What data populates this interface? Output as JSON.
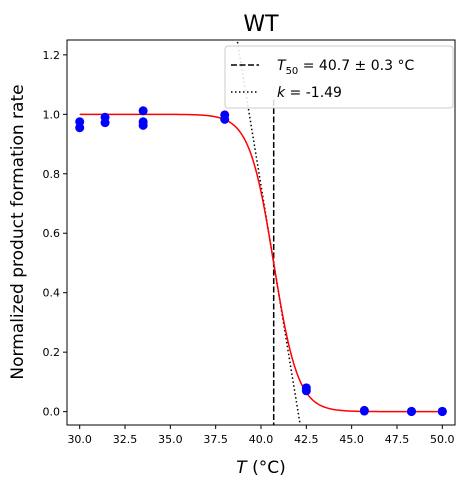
{
  "chart_data": {
    "type": "scatter",
    "title": "WT",
    "xlabel_var": "T",
    "xlabel_unit": " (°C)",
    "ylabel": "Normalized product formation rate",
    "xlim": [
      29.3,
      50.7
    ],
    "ylim": [
      -0.045,
      1.25
    ],
    "xticks": [
      30.0,
      32.5,
      35.0,
      37.5,
      40.0,
      42.5,
      45.0,
      47.5,
      50.0
    ],
    "xtick_labels": [
      "30.0",
      "32.5",
      "35.0",
      "37.5",
      "40.0",
      "42.5",
      "45.0",
      "47.5",
      "50.0"
    ],
    "yticks": [
      0.0,
      0.2,
      0.4,
      0.6,
      0.8,
      1.0,
      1.2
    ],
    "ytick_labels": [
      "0.0",
      "0.2",
      "0.4",
      "0.6",
      "0.8",
      "1.0",
      "1.2"
    ],
    "grid": false,
    "legend_position": "top-right",
    "points": [
      {
        "x": 30.0,
        "y": 0.975
      },
      {
        "x": 30.0,
        "y": 0.955
      },
      {
        "x": 31.4,
        "y": 0.99
      },
      {
        "x": 31.4,
        "y": 0.972
      },
      {
        "x": 33.5,
        "y": 1.012
      },
      {
        "x": 33.5,
        "y": 0.975
      },
      {
        "x": 33.5,
        "y": 0.963
      },
      {
        "x": 38.0,
        "y": 0.998
      },
      {
        "x": 38.0,
        "y": 0.983
      },
      {
        "x": 42.5,
        "y": 0.08
      },
      {
        "x": 42.5,
        "y": 0.07
      },
      {
        "x": 45.7,
        "y": 0.004
      },
      {
        "x": 45.7,
        "y": 0.002
      },
      {
        "x": 48.3,
        "y": 0.001
      },
      {
        "x": 48.3,
        "y": 0.0
      },
      {
        "x": 50.0,
        "y": 0.0
      },
      {
        "x": 50.0,
        "y": 0.001
      }
    ],
    "fit": {
      "T50": 40.7,
      "k": -1.49
    },
    "t50_line": {
      "x": 40.7,
      "y_range": [
        -0.045,
        1.05
      ]
    },
    "slope_line": {
      "x0": 40.7,
      "y0": 0.5,
      "slope": -0.3725
    },
    "legend": [
      {
        "symbol": "T",
        "sub": "50",
        "rest": " = 40.7 ± 0.3 °C",
        "style": "dashed"
      },
      {
        "symbol": "k",
        "rest": " = -1.49",
        "style": "dotted"
      }
    ],
    "colors": {
      "points": "#0000ff",
      "fit": "#ff0000",
      "lines": "#000000"
    }
  }
}
